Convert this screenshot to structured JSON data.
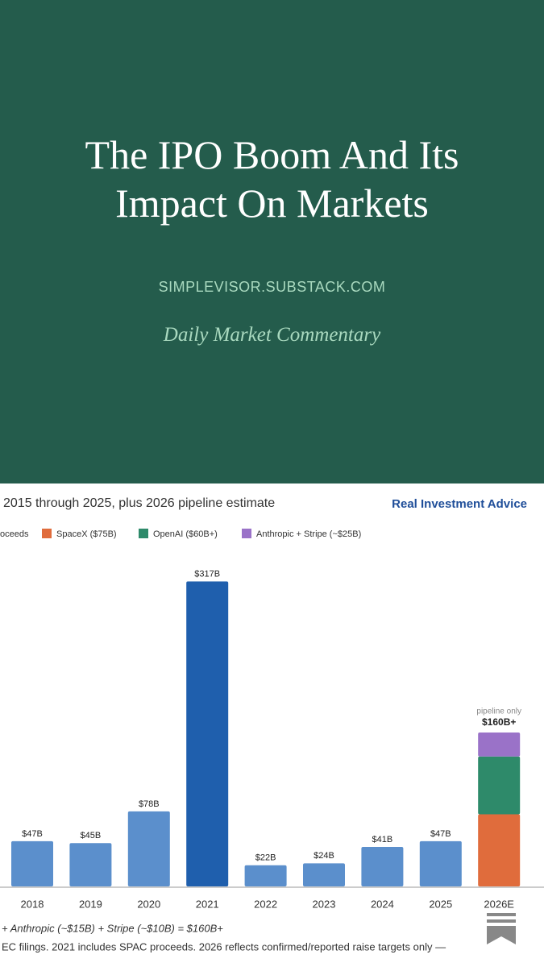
{
  "header": {
    "title_lines": [
      "The IPO Boom And Its",
      "Impact On Markets"
    ],
    "site": "SIMPLEVISOR.SUBSTACK.COM",
    "tagline": "Daily Market Commentary"
  },
  "chart_data": {
    "type": "bar",
    "stacked": true,
    "subtitle": "2015 through 2025, plus 2026 pipeline estimate",
    "source": "Real Investment Advice",
    "categories": [
      "2018",
      "2019",
      "2020",
      "2021",
      "2022",
      "2023",
      "2024",
      "2025",
      "2026E"
    ],
    "series": [
      {
        "name": "oceeds",
        "color": "#5b8fcc",
        "colors": [
          "#5b8fcc",
          "#5b8fcc",
          "#5b8fcc",
          "#1f5fad",
          "#5b8fcc",
          "#5b8fcc",
          "#5b8fcc",
          "#5b8fcc",
          null
        ],
        "values": [
          47,
          45,
          78,
          317,
          22,
          24,
          41,
          47,
          null
        ],
        "value_labels": [
          "$47B",
          "$45B",
          "$78B",
          "$317B",
          "$22B",
          "$24B",
          "$41B",
          "$47B",
          null
        ]
      },
      {
        "name": "SpaceX ($75B)",
        "color": "#e06c3c",
        "values": [
          null,
          null,
          null,
          null,
          null,
          null,
          null,
          null,
          75
        ]
      },
      {
        "name": "OpenAI ($60B+)",
        "color": "#2e8a6a",
        "values": [
          null,
          null,
          null,
          null,
          null,
          null,
          null,
          null,
          60
        ]
      },
      {
        "name": "Anthropic + Stripe (~$25B)",
        "color": "#9a72c8",
        "values": [
          null,
          null,
          null,
          null,
          null,
          null,
          null,
          null,
          25
        ]
      }
    ],
    "total_label": "$160B+",
    "total_note": "pipeline only",
    "ylim": [
      0,
      340
    ],
    "notes": [
      "+ Anthropic (~$15B) + Stripe (~$10B) = $160B+",
      "EC filings. 2021 includes SPAC proceeds. 2026 reflects confirmed/reported raise targets only —"
    ]
  }
}
